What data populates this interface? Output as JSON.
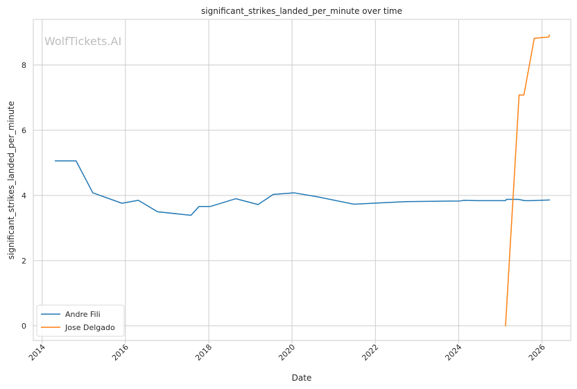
{
  "chart_data": {
    "type": "line",
    "title": "significant_strikes_landed_per_minute over time",
    "xlabel": "Date",
    "ylabel": "significant_strikes_landed_per_minute",
    "watermark": "WolfTickets.AI",
    "xlim": [
      "2013-10-15",
      "2026-09-10"
    ],
    "ylim": [
      -0.45,
      9.4
    ],
    "x_ticks": [
      "2014-01-01",
      "2016-01-01",
      "2018-01-01",
      "2020-01-01",
      "2022-01-01",
      "2024-01-01",
      "2026-01-01"
    ],
    "x_tick_labels": [
      "2014",
      "2016",
      "2018",
      "2020",
      "2022",
      "2024",
      "2026"
    ],
    "y_ticks": [
      0,
      2,
      4,
      6,
      8
    ],
    "y_tick_labels": [
      "0",
      "2",
      "4",
      "6",
      "8"
    ],
    "grid": true,
    "legend_position": "lower-left",
    "series": [
      {
        "name": "Andre Fili",
        "color": "#1f77b4",
        "points": [
          {
            "x": "2014-04-26",
            "y": 5.06
          },
          {
            "x": "2014-10-25",
            "y": 5.06
          },
          {
            "x": "2015-03-21",
            "y": 4.08
          },
          {
            "x": "2015-12-01",
            "y": 3.76
          },
          {
            "x": "2016-04-23",
            "y": 3.85
          },
          {
            "x": "2016-10-08",
            "y": 3.5
          },
          {
            "x": "2017-07-29",
            "y": 3.39
          },
          {
            "x": "2017-10-07",
            "y": 3.66
          },
          {
            "x": "2018-01-14",
            "y": 3.66
          },
          {
            "x": "2018-08-25",
            "y": 3.9
          },
          {
            "x": "2019-03-09",
            "y": 3.72
          },
          {
            "x": "2019-07-20",
            "y": 4.03
          },
          {
            "x": "2020-01-18",
            "y": 4.08
          },
          {
            "x": "2020-08-08",
            "y": 3.96
          },
          {
            "x": "2021-06-26",
            "y": 3.73
          },
          {
            "x": "2022-04-09",
            "y": 3.78
          },
          {
            "x": "2022-10-01",
            "y": 3.81
          },
          {
            "x": "2024-01-13",
            "y": 3.83
          },
          {
            "x": "2024-02-17",
            "y": 3.85
          },
          {
            "x": "2024-06-15",
            "y": 3.84
          },
          {
            "x": "2025-02-15",
            "y": 3.84
          },
          {
            "x": "2025-02-22",
            "y": 3.88
          },
          {
            "x": "2025-06-07",
            "y": 3.88
          },
          {
            "x": "2025-08-02",
            "y": 3.84
          },
          {
            "x": "2025-09-27",
            "y": 3.84
          },
          {
            "x": "2026-03-07",
            "y": 3.86
          }
        ]
      },
      {
        "name": "Jose Delgado",
        "color": "#ff7f0e",
        "points": [
          {
            "x": "2025-02-15",
            "y": 0.0
          },
          {
            "x": "2025-06-14",
            "y": 7.08
          },
          {
            "x": "2025-07-26",
            "y": 7.08
          },
          {
            "x": "2025-10-25",
            "y": 8.82
          },
          {
            "x": "2026-03-01",
            "y": 8.86
          },
          {
            "x": "2026-03-07",
            "y": 8.92
          }
        ]
      }
    ]
  }
}
